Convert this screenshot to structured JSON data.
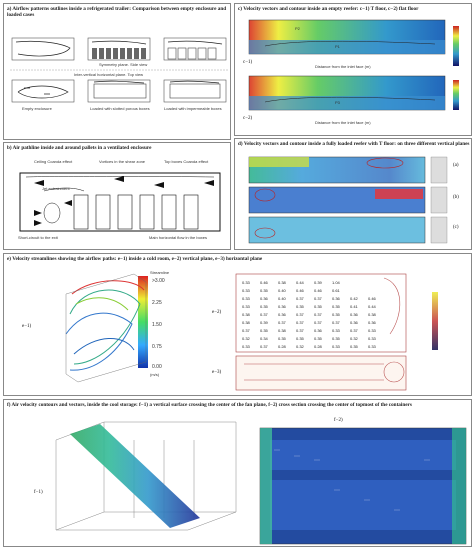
{
  "panel_a": {
    "title": "a) Airflow patterns outlines inside a refrigerated trailer: Comparison between empty enclosure and loaded cases",
    "caption_top": "Symmetry plane. Side view",
    "caption_mid": "Inter-vertical horizontal plane. Top view",
    "labels": [
      "Empty enclosure",
      "Loaded with slotted porous boxes",
      "Loaded with impermeable boxes"
    ]
  },
  "panel_b": {
    "title": "b) Air pathline inside and around pallets in a ventilated enclosure",
    "annotations": [
      "Ceiling Coanda effect",
      "Vortices in the shear zone",
      "Top boxes Coanda effect",
      "Jet entrainment",
      "Short-circuit to the exit",
      "Main horizontal flow in the boxes"
    ]
  },
  "panel_c": {
    "title": "c) Velocity vectors and contour inside an empty reefer: c−1) T floor, c−2) flat floor",
    "sub1": "c−1)",
    "sub2": "c−2)",
    "axis": "Distance from the inlet face (m)",
    "markers": [
      "P1",
      "P2",
      "P3"
    ]
  },
  "panel_d": {
    "title": "d) Velocity vectors and contour inside a fully loaded reefer with T floor: on three different vertical planes",
    "subs": [
      "(a)",
      "(b)",
      "(c)"
    ]
  },
  "panel_e": {
    "title": "e) Velocity streamlines showing the airflow paths: e−1) inside a cold room, e−2) vertical plane, e−3) horizontal plane",
    "legend_title": "Streamline",
    "legend_values": [
      ">3.00",
      "2.25",
      "1.50",
      "0.75",
      "0.00"
    ],
    "legend_unit": "(m/s)",
    "sub1": "e−1)",
    "sub2": "e−2)",
    "sub3": "e−3)",
    "grid_rows": [
      [
        "0.33",
        "0.46",
        "0.38",
        "0.44",
        "0.39",
        "1.04",
        "",
        ""
      ],
      [
        "0.33",
        "0.35",
        "0.40",
        "0.46",
        "0.46",
        "0.61",
        "",
        ""
      ],
      [
        "0.33",
        "0.36",
        "0.40",
        "0.37",
        "0.37",
        "0.36",
        "0.42",
        "0.46"
      ],
      [
        "0.33",
        "0.35",
        "0.36",
        "0.35",
        "0.35",
        "0.35",
        "0.41",
        "0.44"
      ],
      [
        "0.38",
        "0.37",
        "0.36",
        "0.37",
        "0.37",
        "0.35",
        "0.36",
        "0.38"
      ],
      [
        "0.38",
        "0.39",
        "0.37",
        "0.37",
        "0.37",
        "0.37",
        "0.36",
        "0.36"
      ],
      [
        "0.37",
        "0.35",
        "0.38",
        "0.37",
        "0.36",
        "0.33",
        "0.37",
        "0.33"
      ],
      [
        "0.32",
        "0.34",
        "0.35",
        "0.35",
        "0.35",
        "0.35",
        "0.32",
        "0.33"
      ],
      [
        "0.33",
        "0.37",
        "0.28",
        "0.32",
        "0.28",
        "0.33",
        "0.35",
        "0.33"
      ]
    ]
  },
  "panel_f": {
    "title": "f) Air velocity contours and vectors, inside the cool storage: f−1) a vertical surface crossing the center of the fan plane, f−2) cross section crossing the center of topmost of the containers",
    "sub1": "f−1)",
    "sub2": "f−2)"
  }
}
